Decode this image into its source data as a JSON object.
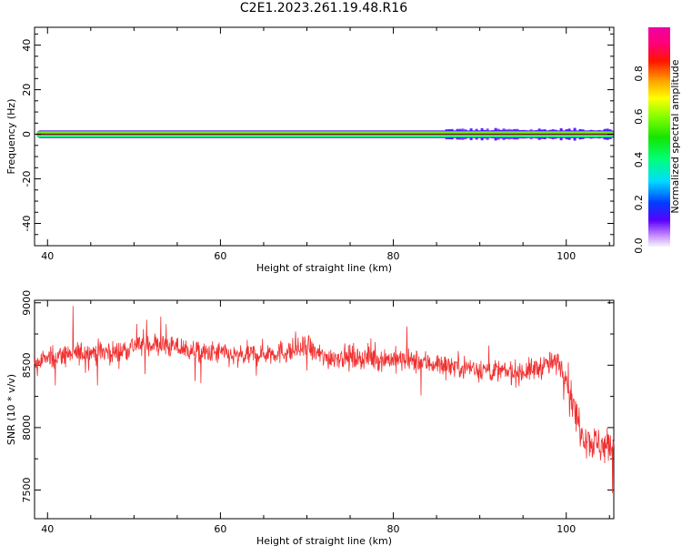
{
  "title": "C2E1.2023.261.19.48.R16",
  "chart_data": [
    {
      "type": "heatmap",
      "xlabel": "Height of straight line (km)",
      "ylabel": "Frequency (Hz)",
      "xlim": [
        38.5,
        105.5
      ],
      "ylim": [
        -50,
        48
      ],
      "xticks": [
        40,
        60,
        80,
        100
      ],
      "yticks": [
        -40,
        -20,
        0,
        20,
        40
      ],
      "colorbar": {
        "label": "Normalized spectral amplitude",
        "range": [
          0,
          1
        ],
        "ticks": [
          "0.0",
          "0.2",
          "0.4",
          "0.6",
          "0.8"
        ],
        "colormap": "gist_ncar-like (blue → cyan → green → yellow → orange → red → magenta)"
      },
      "signal": {
        "center_frequency_hz": 0,
        "description_visible": "narrow band at 0 Hz across full height range, slight broadening above ~85 km"
      }
    },
    {
      "type": "line",
      "xlabel": "Height of straight line (km)",
      "ylabel": "SNR (10 * v/v)",
      "xlim": [
        38.5,
        105.5
      ],
      "ylim": [
        7270,
        9020
      ],
      "xticks": [
        40,
        60,
        80,
        100
      ],
      "yticks": [
        7500,
        8000,
        8500,
        9000
      ],
      "line_color": "#f03030",
      "series": [
        {
          "x": [
            38.5,
            40,
            42,
            44,
            46,
            48,
            50,
            52,
            54,
            56,
            58,
            60,
            62,
            64,
            66,
            68,
            70,
            72,
            74,
            76,
            78,
            80,
            82,
            84,
            86,
            88,
            90,
            92,
            94,
            96,
            98,
            99,
            100,
            101,
            102,
            103,
            104,
            105.5
          ],
          "y": [
            8500,
            8560,
            8580,
            8600,
            8610,
            8600,
            8660,
            8670,
            8650,
            8630,
            8590,
            8600,
            8560,
            8590,
            8600,
            8610,
            8640,
            8560,
            8570,
            8560,
            8550,
            8550,
            8530,
            8520,
            8500,
            8490,
            8470,
            8450,
            8440,
            8460,
            8510,
            8520,
            8430,
            8120,
            7950,
            7880,
            7860,
            7850
          ]
        }
      ]
    }
  ]
}
